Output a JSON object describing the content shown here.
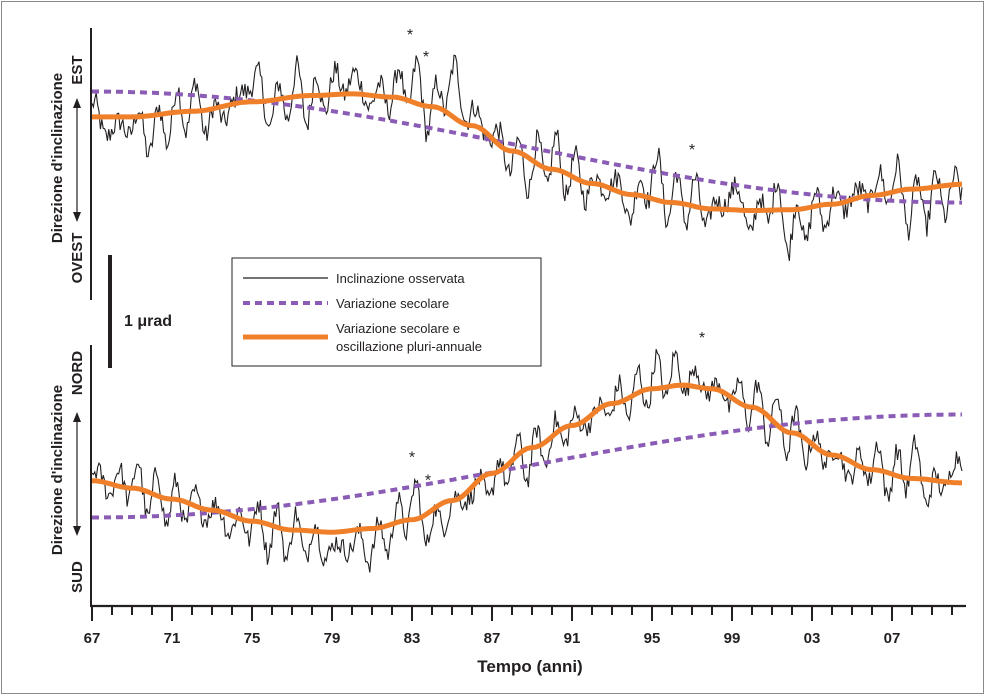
{
  "chart_data": {
    "type": "line",
    "xlabel": "Tempo (anni)",
    "xlim": [
      1967,
      2010.5
    ],
    "x_tick_labels": [
      "67",
      "71",
      "75",
      "79",
      "83",
      "87",
      "91",
      "95",
      "99",
      "03",
      "07"
    ],
    "scale_bar": "1 μrad",
    "colors": {
      "observed": "#231f20",
      "secular": "#8a5cb5",
      "oscillation": "#f07f2a"
    },
    "legend": {
      "position": "center-left",
      "entries": [
        {
          "label": "Inclinazione osservata",
          "style": "solid-thin",
          "color": "#231f20"
        },
        {
          "label": "Variazione secolare",
          "style": "dashed",
          "color": "#8a5cb5"
        },
        {
          "label_line1": "Variazione secolare e",
          "label_line2": "oscillazione pluri-annuale",
          "style": "solid-thick",
          "color": "#f07f2a"
        }
      ]
    },
    "panels": [
      {
        "ylabel": "Direzione d'inclinazione",
        "top_label": "EST",
        "bottom_label": "OVEST",
        "units": "μrad",
        "ylim": [
          -1.4,
          1.6
        ],
        "series": [
          {
            "key": "secular",
            "x": [
              1967,
              2010.5
            ],
            "y": [
              0.85,
              -0.55
            ]
          },
          {
            "key": "oscillation",
            "x": [
              1967,
              1969,
              1972,
              1975,
              1978,
              1980,
              1982,
              1984,
              1986,
              1988,
              1990,
              1992,
              1994,
              1996,
              1998,
              2000,
              2002,
              2004,
              2006,
              2008,
              2010.5
            ],
            "y": [
              0.53,
              0.53,
              0.6,
              0.72,
              0.8,
              0.82,
              0.78,
              0.66,
              0.42,
              0.1,
              -0.13,
              -0.31,
              -0.45,
              -0.55,
              -0.63,
              -0.65,
              -0.64,
              -0.57,
              -0.46,
              -0.38,
              -0.32
            ]
          },
          {
            "key": "observed",
            "x": [
              1967,
              1968,
              1969,
              1970,
              1971,
              1972,
              1973,
              1974,
              1975,
              1976,
              1977,
              1978,
              1979,
              1980,
              1981,
              1982,
              1983,
              1984,
              1985,
              1986,
              1987,
              1988,
              1989,
              1990,
              1991,
              1992,
              1993,
              1994,
              1995,
              1996,
              1997,
              1998,
              1999,
              2000,
              2001,
              2002,
              2003,
              2004,
              2005,
              2006,
              2007,
              2008,
              2009,
              2010.5
            ],
            "y": [
              0.55,
              0.35,
              0.45,
              0.3,
              0.55,
              0.7,
              0.5,
              0.65,
              1.0,
              0.6,
              0.85,
              0.75,
              0.9,
              1.0,
              0.75,
              0.85,
              0.95,
              0.6,
              1.0,
              0.55,
              0.3,
              0.0,
              -0.1,
              0.0,
              -0.2,
              -0.35,
              -0.3,
              -0.6,
              -0.2,
              -0.5,
              -0.5,
              -0.7,
              -0.4,
              -0.8,
              -0.5,
              -0.9,
              -0.7,
              -0.6,
              -0.5,
              -0.4,
              -0.3,
              -0.6,
              -0.5,
              -0.4
            ]
          }
        ],
        "annotations": [
          {
            "text": "*",
            "x": 1982.9
          },
          {
            "text": "*",
            "x": 1983.7
          },
          {
            "text": "*",
            "x": 1997.0
          }
        ]
      },
      {
        "ylabel": "Direzione d'inclinazione",
        "top_label": "NORD",
        "bottom_label": "SUD",
        "units": "μrad",
        "ylim": [
          -1.5,
          1.6
        ],
        "series": [
          {
            "key": "secular",
            "x": [
              1967,
              2010.5
            ],
            "y": [
              -0.65,
              0.75
            ]
          },
          {
            "key": "oscillation",
            "x": [
              1967,
              1969,
              1971,
              1973,
              1975,
              1977,
              1979,
              1981,
              1983,
              1985,
              1987,
              1989,
              1991,
              1993,
              1995,
              1996.5,
              1998,
              2000,
              2002,
              2004,
              2006,
              2008,
              2010.5
            ],
            "y": [
              -0.15,
              -0.25,
              -0.4,
              -0.55,
              -0.7,
              -0.82,
              -0.85,
              -0.8,
              -0.68,
              -0.42,
              -0.05,
              0.3,
              0.6,
              0.9,
              1.1,
              1.15,
              1.1,
              0.85,
              0.5,
              0.2,
              0.0,
              -0.12,
              -0.18
            ]
          },
          {
            "key": "observed",
            "x": [
              1967,
              1968,
              1969,
              1970,
              1971,
              1972,
              1973,
              1974,
              1975,
              1976,
              1977,
              1978,
              1979,
              1980,
              1981,
              1982,
              1983,
              1984,
              1985,
              1986,
              1987,
              1988,
              1989,
              1990,
              1991,
              1992,
              1993,
              1994,
              1995,
              1996,
              1997,
              1998,
              1999,
              2000,
              2001,
              2002,
              2003,
              2004,
              2005,
              2006,
              2007,
              2008,
              2009,
              2010.5
            ],
            "y": [
              -0.1,
              -0.2,
              -0.15,
              -0.35,
              -0.45,
              -0.5,
              -0.55,
              -0.75,
              -0.7,
              -0.85,
              -0.9,
              -0.95,
              -1.1,
              -1.0,
              -1.05,
              -0.8,
              -0.45,
              -0.8,
              -0.5,
              -0.3,
              -0.2,
              0.1,
              0.2,
              0.4,
              0.6,
              0.7,
              0.9,
              1.0,
              1.2,
              1.3,
              1.25,
              1.1,
              1.0,
              0.9,
              0.7,
              0.5,
              0.3,
              0.2,
              0.0,
              0.1,
              -0.1,
              0.1,
              -0.3,
              0.1
            ]
          }
        ],
        "annotations": [
          {
            "text": "*",
            "x": 1983.0
          },
          {
            "text": "*",
            "x": 1983.8
          },
          {
            "text": "*",
            "x": 1997.5
          }
        ]
      }
    ]
  }
}
